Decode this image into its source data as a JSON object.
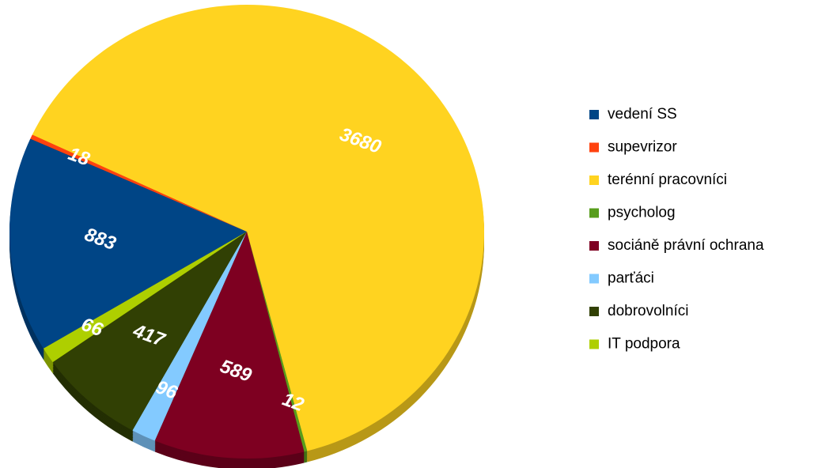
{
  "chart_data": {
    "type": "pie",
    "categories": [
      "vedení SS",
      "supevrizor",
      "terénní pracovníci",
      "psycholog",
      "sociáně právní ochrana",
      "parťáci",
      "dobrovolníci",
      "IT podpora"
    ],
    "values": [
      883,
      18,
      3680,
      12,
      589,
      96,
      417,
      66
    ],
    "colors": [
      "#004586",
      "#ff420e",
      "#ffd320",
      "#579d1c",
      "#7e0021",
      "#83caff",
      "#314004",
      "#aecf00"
    ],
    "legend": "right"
  }
}
